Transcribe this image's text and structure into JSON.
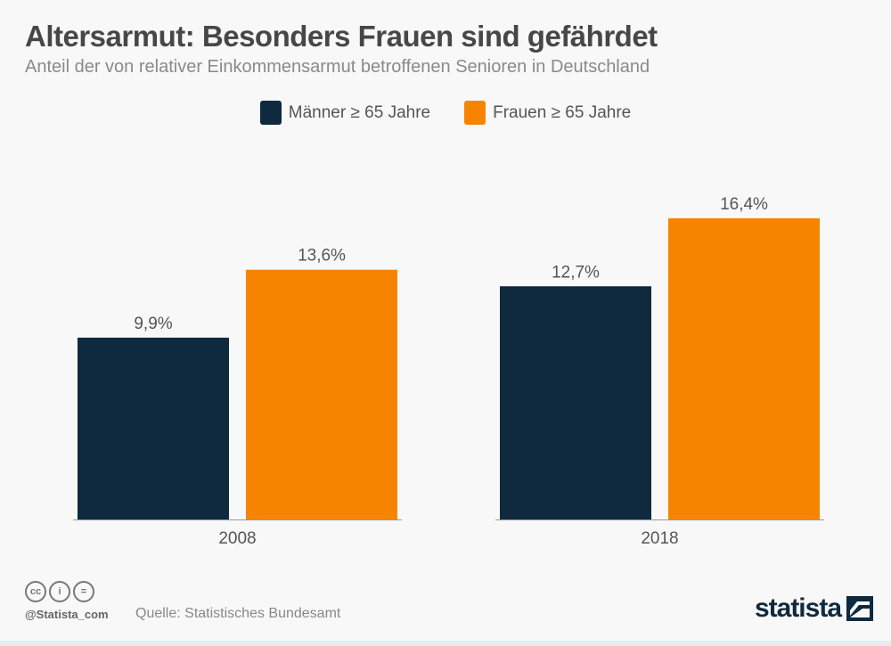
{
  "header": {
    "title": "Altersarmut: Besonders Frauen sind gefährdet",
    "subtitle": "Anteil der von relativer Einkommensarmut betroffenen Senioren in Deutschland"
  },
  "chart_data": {
    "type": "bar",
    "categories": [
      "2008",
      "2018"
    ],
    "series": [
      {
        "name": "Männer ≥ 65 Jahre",
        "color": "#0f2a3e",
        "values": [
          9.9,
          12.7
        ],
        "labels": [
          "9,9%",
          "12,7%"
        ]
      },
      {
        "name": "Frauen ≥ 65 Jahre",
        "color": "#f78400",
        "values": [
          13.6,
          16.4
        ],
        "labels": [
          "13,6%",
          "16,4%"
        ]
      }
    ],
    "ylim": [
      0,
      16.4
    ],
    "grid": false,
    "legend": "top-center"
  },
  "footer": {
    "handle": "@Statista_com",
    "source": "Quelle: Statistisches Bundesamt",
    "logo": "statista",
    "license_icons": [
      "cc-icon",
      "by-icon",
      "nd-icon"
    ],
    "license_glyphs": [
      "cc",
      "i",
      "="
    ]
  }
}
